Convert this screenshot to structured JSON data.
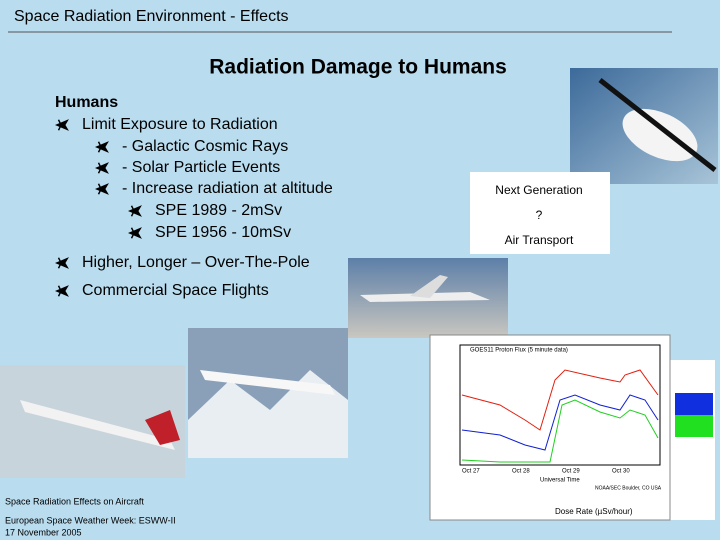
{
  "header": {
    "title": "Space Radiation Environment - Effects"
  },
  "slide": {
    "title": "Radiation Damage to Humans",
    "bullets": [
      {
        "level": 0,
        "text": "Humans"
      },
      {
        "level": 1,
        "text": "Limit Exposure to Radiation"
      },
      {
        "level": 2,
        "text": "- Galactic Cosmic Rays"
      },
      {
        "level": 2,
        "text": "- Solar Particle Events"
      },
      {
        "level": 2,
        "text": "- Increase radiation at altitude"
      },
      {
        "level": 3,
        "text": "SPE 1989 - 2mSv"
      },
      {
        "level": 3,
        "text": "SPE 1956 - 10mSv"
      },
      {
        "level": 1,
        "text": "Higher, Longer – Over-The-Pole"
      },
      {
        "level": 1,
        "text": "Commercial Space Flights"
      }
    ],
    "caption": [
      "Next Generation",
      "?",
      "Air Transport"
    ]
  },
  "goes_plot": {
    "title": "GOES11 Proton Flux (5 minute data)",
    "dates": [
      "Oct 27",
      "Oct 28",
      "Oct 29",
      "Oct 30"
    ],
    "x_label": "Universal Time",
    "dose_label": "Dose Rate (µSv/hour)",
    "credit": "NOAA/SEC Boulder, CO USA"
  },
  "footer": [
    "Space Radiation Effects on Aircraft",
    "European Space Weather Week: ESWW-II",
    "17 November 2005"
  ]
}
